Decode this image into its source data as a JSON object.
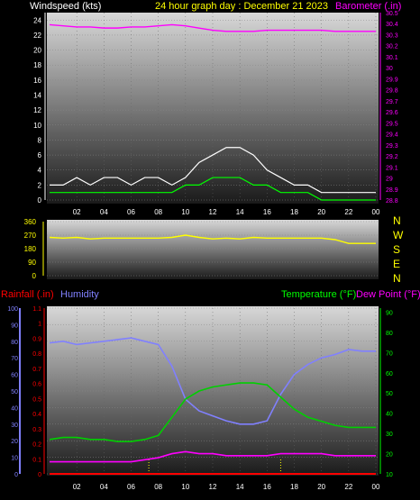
{
  "title": "24 hour graph day : December 21 2023",
  "colors": {
    "wind": "#ffffff",
    "gust": "#ffffff",
    "wind_avg": "#00ff00",
    "baro": "#ff00ff",
    "dir": "#ffff00",
    "rain": "#ff0000",
    "humidity": "#8080ff",
    "temp": "#00d000",
    "dew": "#ff00ff",
    "axis_left": "#8080ff",
    "axis_baro": "#ff00ff",
    "axis_dir": "#ffff00",
    "axis_temp": "#00ff00"
  },
  "chart_data": [
    {
      "type": "line",
      "ylabel_left": "Windspeed (kts)",
      "ylabel_right": "Barometer (.in)",
      "x_ticks": [
        "02",
        "04",
        "06",
        "08",
        "10",
        "12",
        "14",
        "16",
        "18",
        "20",
        "22",
        "00"
      ],
      "y_left_ticks": [
        0,
        2,
        4,
        6,
        8,
        10,
        12,
        14,
        16,
        18,
        20,
        22,
        24
      ],
      "y_left_range": [
        0,
        25
      ],
      "y_right_ticks": [
        "28.8",
        "28.9",
        "29",
        "29.1",
        "29.2",
        "29.3",
        "29.4",
        "29.5",
        "29.6",
        "29.7",
        "29.8",
        "29.9",
        "30",
        "30.1",
        "30.2",
        "30.3",
        "30.4",
        "30.5"
      ],
      "y_right_range": [
        28.8,
        30.5
      ],
      "x_hours": [
        0,
        1,
        2,
        3,
        4,
        5,
        6,
        7,
        8,
        9,
        10,
        11,
        12,
        13,
        14,
        15,
        16,
        17,
        18,
        19,
        20,
        21,
        22,
        23,
        24
      ],
      "series": [
        {
          "key": "wind_gust",
          "values": [
            2,
            2,
            3,
            2,
            3,
            3,
            2,
            3,
            3,
            2,
            3,
            5,
            6,
            7,
            7,
            6,
            4,
            3,
            2,
            2,
            1,
            1,
            1,
            1,
            1
          ]
        },
        {
          "key": "wind_avg",
          "values": [
            1,
            1,
            1,
            1,
            1,
            1,
            1,
            1,
            1,
            1,
            2,
            2,
            3,
            3,
            3,
            2,
            2,
            1,
            1,
            1,
            0,
            0,
            0,
            0,
            0
          ]
        },
        {
          "key": "barometer",
          "values": [
            30.39,
            30.38,
            30.37,
            30.37,
            30.36,
            30.36,
            30.37,
            30.37,
            30.38,
            30.39,
            30.38,
            30.36,
            30.34,
            30.33,
            30.33,
            30.33,
            30.34,
            30.34,
            30.34,
            30.34,
            30.34,
            30.33,
            30.33,
            30.33,
            30.33
          ]
        }
      ]
    },
    {
      "type": "line",
      "ylabel_right": "N W S E N",
      "y_left_ticks": [
        0,
        90,
        180,
        270,
        360
      ],
      "y_range": [
        0,
        360
      ],
      "compass": [
        "N",
        "W",
        "S",
        "E",
        "N"
      ],
      "x_hours": [
        0,
        1,
        2,
        3,
        4,
        5,
        6,
        7,
        8,
        9,
        10,
        11,
        12,
        13,
        14,
        15,
        16,
        17,
        18,
        19,
        20,
        21,
        22,
        23,
        24
      ],
      "series": [
        {
          "key": "wind_direction",
          "values": [
            255,
            250,
            255,
            245,
            250,
            250,
            250,
            250,
            250,
            255,
            270,
            255,
            245,
            250,
            245,
            255,
            250,
            250,
            250,
            250,
            250,
            240,
            215,
            215,
            215
          ]
        }
      ]
    },
    {
      "type": "line",
      "ylabel_left_1": "Rainfall (.in)",
      "ylabel_left_2": "Humidity",
      "ylabel_right_1": "Temperature (°F)",
      "ylabel_right_2": "Dew Point (°F)",
      "x_ticks": [
        "02",
        "04",
        "06",
        "08",
        "10",
        "12",
        "14",
        "16",
        "18",
        "20",
        "22",
        "00"
      ],
      "humidity_ticks": [
        0,
        10,
        20,
        30,
        40,
        50,
        60,
        70,
        80,
        90,
        100
      ],
      "humidity_range": [
        0,
        100
      ],
      "rain_ticks": [
        "0",
        "0.1",
        "0.2",
        "0.3",
        "0.4",
        "0.5",
        "0.6",
        "0.7",
        "0.8",
        "0.9",
        "1",
        "1.1"
      ],
      "rain_range": [
        0,
        1.1
      ],
      "temp_ticks": [
        10,
        20,
        30,
        40,
        50,
        60,
        70,
        80,
        90
      ],
      "temp_range": [
        10,
        92
      ],
      "x_hours": [
        0,
        1,
        2,
        3,
        4,
        5,
        6,
        7,
        8,
        9,
        10,
        11,
        12,
        13,
        14,
        15,
        16,
        17,
        18,
        19,
        20,
        21,
        22,
        23,
        24
      ],
      "series": [
        {
          "key": "humidity",
          "values": [
            79,
            80,
            78,
            79,
            80,
            81,
            82,
            80,
            78,
            65,
            45,
            38,
            35,
            32,
            30,
            30,
            32,
            48,
            60,
            66,
            70,
            72,
            75,
            74,
            74
          ]
        },
        {
          "key": "temperature",
          "values": [
            27,
            28,
            28,
            27,
            27,
            26,
            26,
            27,
            29,
            38,
            47,
            51,
            53,
            54,
            55,
            55,
            54,
            48,
            42,
            38,
            36,
            34,
            33,
            33,
            33
          ]
        },
        {
          "key": "dew_point",
          "values": [
            16,
            16,
            16,
            16,
            16,
            16,
            16,
            17,
            18,
            20,
            21,
            20,
            20,
            19,
            19,
            19,
            19,
            20,
            20,
            20,
            20,
            19,
            19,
            19,
            19
          ]
        },
        {
          "key": "rainfall",
          "values": [
            0,
            0,
            0,
            0,
            0,
            0,
            0,
            0,
            0,
            0,
            0,
            0,
            0,
            0,
            0,
            0,
            0,
            0,
            0,
            0,
            0,
            0,
            0,
            0,
            0
          ]
        }
      ]
    }
  ]
}
